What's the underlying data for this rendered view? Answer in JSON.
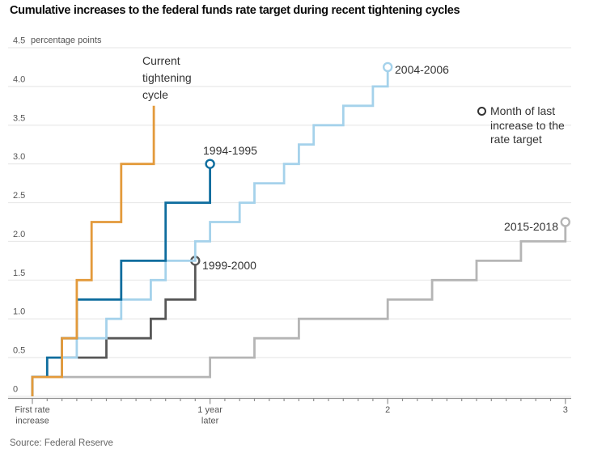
{
  "source": "Source: Federal Reserve",
  "legend": {
    "label": "Month of last increase to the rate target"
  },
  "colors": {
    "background": "#FFFFFF",
    "grid": "#E9E9E9",
    "axis": "#8F8F8F",
    "tick": "#8F8F8F",
    "axis_text": "#555555",
    "annotation_text": "#333333",
    "legend_marker": "#333333",
    "orange": "#E39A3B",
    "dark_blue": "#0E6D9E",
    "light_blue": "#A5D2EB",
    "dark_gray": "#575757",
    "light_gray": "#B5B5B5"
  },
  "chart_data": {
    "type": "line",
    "step": true,
    "title": "Cumulative increases to the federal funds rate target during recent tightening cycles",
    "ylabel": "percentage points",
    "x_unit": "months after first rate increase",
    "ylim": [
      0,
      4.5
    ],
    "xlim_months": [
      0,
      36.4
    ],
    "grid": true,
    "y_ticks": [
      "0",
      "0.5",
      "1.0",
      "1.5",
      "2.0",
      "2.5",
      "3.0",
      "3.5",
      "4.0",
      "4.5"
    ],
    "x_axis_labels": [
      {
        "month": 0,
        "lines": [
          "First rate",
          "increase"
        ]
      },
      {
        "month": 12,
        "lines": [
          "1 year",
          "later"
        ]
      },
      {
        "month": 24,
        "lines": [
          "2"
        ]
      },
      {
        "month": 36,
        "lines": [
          "3"
        ]
      }
    ],
    "x_minor_tick_every_months": 1,
    "x_major_tick_every_months": 12,
    "legend_note": "Month of last increase to the rate target",
    "series": [
      {
        "label": "Current tightening cycle",
        "color_key": "orange",
        "end_marker": false,
        "months": [
          0,
          2,
          3,
          4,
          6,
          8.2
        ],
        "cumulative": [
          0.25,
          0.75,
          1.5,
          2.25,
          3.0,
          3.75
        ]
      },
      {
        "label": "1994-1995",
        "color_key": "dark_blue",
        "end_marker": true,
        "months": [
          0,
          1,
          2,
          3,
          6,
          9,
          12
        ],
        "cumulative": [
          0.25,
          0.5,
          0.75,
          1.25,
          1.75,
          2.5,
          3.0
        ]
      },
      {
        "label": "1999-2000",
        "color_key": "dark_gray",
        "end_marker": true,
        "months": [
          0,
          2,
          5,
          8,
          9,
          11
        ],
        "cumulative": [
          0.25,
          0.5,
          0.75,
          1.0,
          1.25,
          1.75
        ]
      },
      {
        "label": "2004-2006",
        "color_key": "light_blue",
        "end_marker": true,
        "months": [
          0,
          2,
          3,
          5,
          6,
          8,
          9,
          11,
          12,
          14,
          15,
          17,
          18,
          19,
          21,
          23,
          24
        ],
        "cumulative": [
          0.25,
          0.5,
          0.75,
          1.0,
          1.25,
          1.5,
          1.75,
          2.0,
          2.25,
          2.5,
          2.75,
          3.0,
          3.25,
          3.5,
          3.75,
          4.0,
          4.25
        ]
      },
      {
        "label": "2015-2018",
        "color_key": "light_gray",
        "end_marker": true,
        "months": [
          0,
          12,
          15,
          18,
          24,
          27,
          30,
          33,
          36
        ],
        "cumulative": [
          0.25,
          0.5,
          0.75,
          1.0,
          1.25,
          1.5,
          1.75,
          2.0,
          2.25
        ]
      }
    ]
  }
}
